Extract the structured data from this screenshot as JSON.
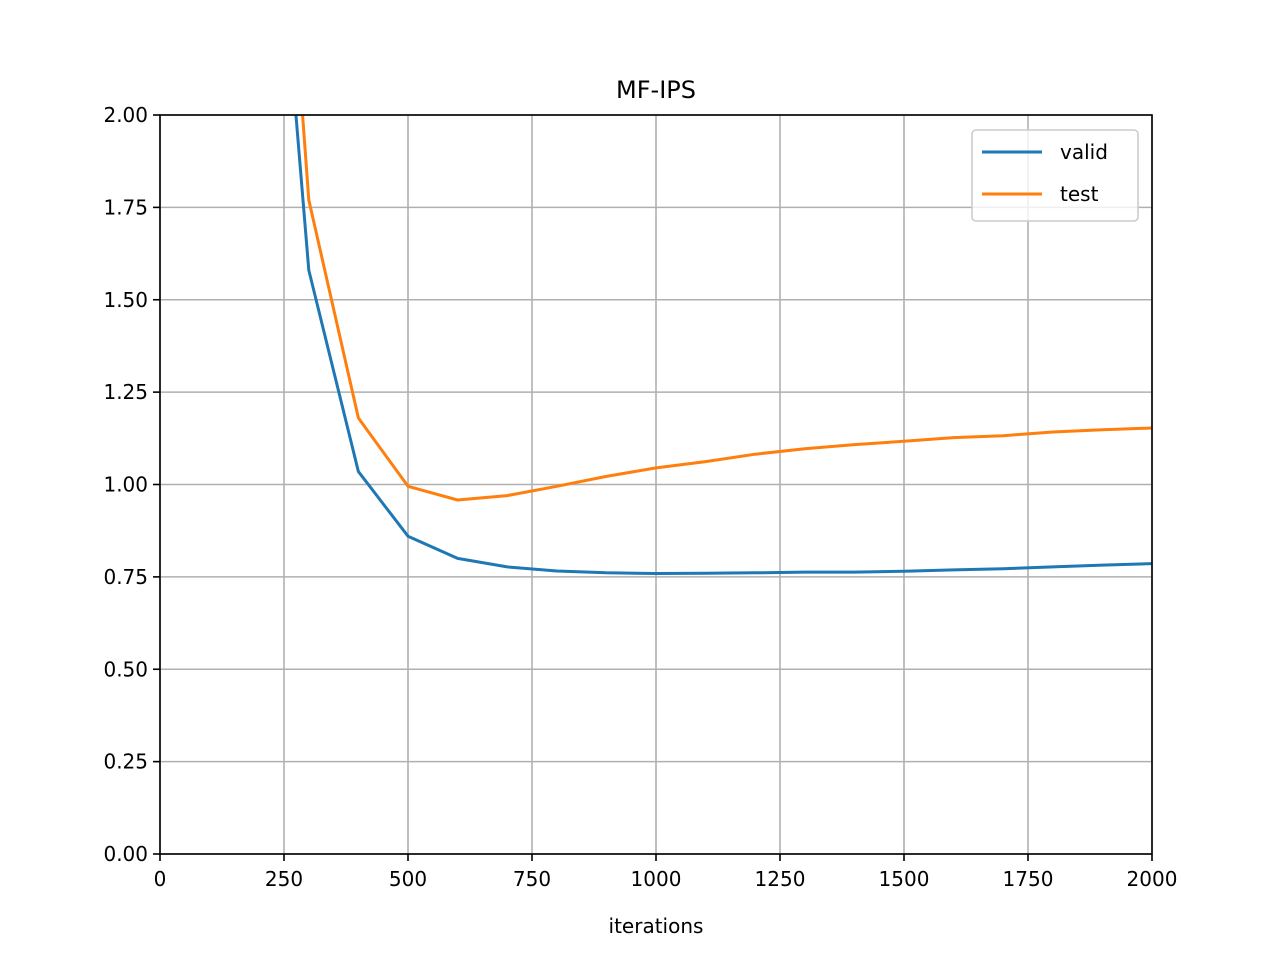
{
  "chart_data": {
    "type": "line",
    "title": "MF-IPS",
    "xlabel": "iterations",
    "ylabel": "",
    "xlim": [
      0,
      2000
    ],
    "ylim": [
      0,
      2
    ],
    "grid": true,
    "legend_position": "top-right",
    "xticks": [
      0,
      250,
      500,
      750,
      1000,
      1250,
      1500,
      1750,
      2000
    ],
    "xtick_labels": [
      "0",
      "250",
      "500",
      "750",
      "1000",
      "1250",
      "1500",
      "1750",
      "2000"
    ],
    "yticks": [
      0,
      0.25,
      0.5,
      0.75,
      1.0,
      1.25,
      1.5,
      1.75,
      2.0
    ],
    "ytick_labels": [
      "0.00",
      "0.25",
      "0.50",
      "0.75",
      "1.00",
      "1.25",
      "1.50",
      "1.75",
      "2.00"
    ],
    "x": [
      200,
      300,
      400,
      500,
      600,
      700,
      800,
      900,
      1000,
      1100,
      1200,
      1300,
      1400,
      1500,
      1600,
      1700,
      1800,
      1900,
      2000
    ],
    "series": [
      {
        "name": "valid",
        "color": "#1f77b4",
        "values": [
          3.2,
          1.58,
          1.035,
          0.86,
          0.8,
          0.777,
          0.766,
          0.761,
          0.759,
          0.76,
          0.761,
          0.763,
          0.763,
          0.765,
          0.769,
          0.772,
          0.777,
          0.782,
          0.786
        ]
      },
      {
        "name": "test",
        "color": "#ff7f0e",
        "values": [
          3.6,
          1.77,
          1.18,
          0.995,
          0.958,
          0.97,
          0.995,
          1.022,
          1.045,
          1.062,
          1.082,
          1.097,
          1.108,
          1.117,
          1.127,
          1.132,
          1.142,
          1.148,
          1.153
        ]
      }
    ]
  }
}
